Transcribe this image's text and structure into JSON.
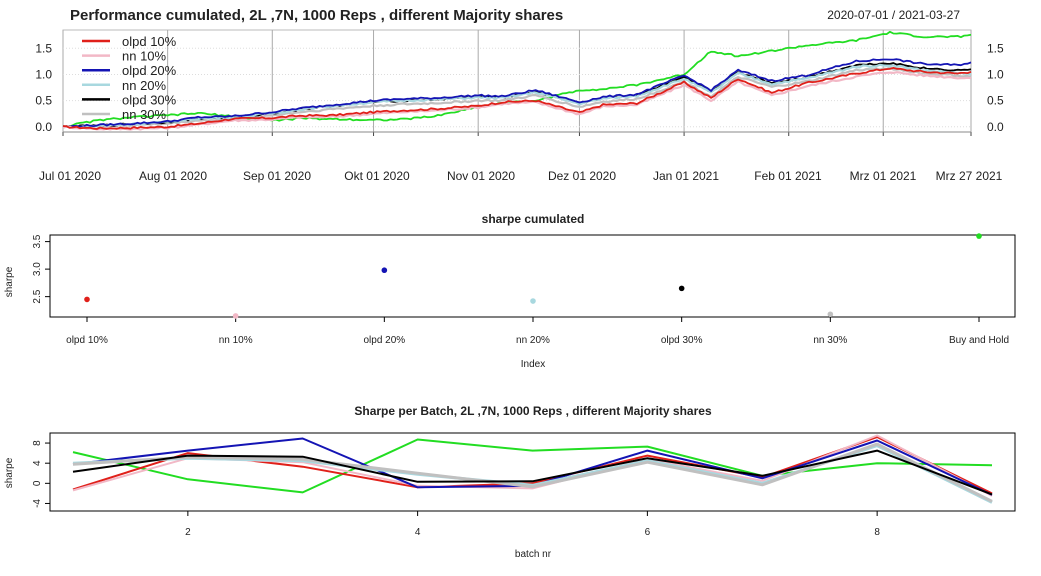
{
  "chart_data": [
    {
      "type": "line",
      "title": "Performance cumulated,  2L ,7N,  1000  Reps , different Majority shares",
      "subtitle": "2020-07-01 / 2021-03-27",
      "x_tick_labels": [
        "Jul 01 2020",
        "Aug 01 2020",
        "Sep 01 2020",
        "Okt 01 2020",
        "Nov 01 2020",
        "Dez 01 2020",
        "Jan 01 2021",
        "Feb 01 2021",
        "Mrz 01 2021",
        "Mrz 27 2021"
      ],
      "y_ticks": [
        "0.0",
        "0.5",
        "1.0",
        "1.5"
      ],
      "ylim": [
        -0.1,
        1.85
      ],
      "grid": true,
      "legend_position": "top-left",
      "x_days": [
        0,
        10,
        20,
        31,
        40,
        50,
        62,
        70,
        80,
        92,
        100,
        110,
        123,
        130,
        140,
        153,
        160,
        170,
        184,
        192,
        200,
        210,
        220,
        235,
        245,
        255,
        265,
        269
      ],
      "series": [
        {
          "name": "olpd 10%",
          "color": "#e0201a",
          "values": [
            0.0,
            -0.03,
            -0.02,
            0.0,
            0.06,
            0.15,
            0.17,
            0.21,
            0.22,
            0.28,
            0.31,
            0.34,
            0.4,
            0.47,
            0.5,
            0.27,
            0.42,
            0.45,
            0.85,
            0.55,
            0.92,
            0.65,
            0.83,
            1.02,
            1.12,
            1.05,
            1.02,
            1.05
          ]
        },
        {
          "name": "nn 10%",
          "color": "#f2b8c6",
          "values": [
            0.0,
            -0.04,
            -0.04,
            -0.02,
            0.04,
            0.12,
            0.14,
            0.18,
            0.19,
            0.25,
            0.28,
            0.31,
            0.37,
            0.44,
            0.47,
            0.24,
            0.39,
            0.42,
            0.8,
            0.5,
            0.86,
            0.6,
            0.77,
            0.96,
            1.05,
            0.98,
            0.94,
            0.93
          ]
        },
        {
          "name": "olpd 20%",
          "color": "#1414b4",
          "values": [
            0.0,
            0.03,
            0.06,
            0.1,
            0.18,
            0.2,
            0.28,
            0.35,
            0.42,
            0.5,
            0.53,
            0.55,
            0.6,
            0.58,
            0.7,
            0.47,
            0.57,
            0.62,
            0.98,
            0.7,
            1.08,
            0.88,
            0.98,
            1.25,
            1.3,
            1.2,
            1.18,
            1.23
          ]
        },
        {
          "name": "nn 20%",
          "color": "#a8d8df",
          "values": [
            0.0,
            0.02,
            0.05,
            0.09,
            0.16,
            0.18,
            0.26,
            0.33,
            0.4,
            0.47,
            0.5,
            0.52,
            0.56,
            0.55,
            0.66,
            0.44,
            0.54,
            0.59,
            0.92,
            0.65,
            1.02,
            0.82,
            0.92,
            1.15,
            1.18,
            1.08,
            1.03,
            1.0
          ]
        },
        {
          "name": "olpd 30%",
          "color": "#000000",
          "values": [
            0.0,
            0.02,
            0.05,
            0.09,
            0.16,
            0.18,
            0.26,
            0.33,
            0.4,
            0.47,
            0.5,
            0.52,
            0.58,
            0.56,
            0.67,
            0.45,
            0.55,
            0.6,
            0.94,
            0.67,
            1.04,
            0.84,
            0.94,
            1.18,
            1.22,
            1.12,
            1.08,
            1.1
          ]
        },
        {
          "name": "nn 30%",
          "color": "#c0c0c0",
          "values": [
            0.0,
            0.01,
            0.03,
            0.06,
            0.12,
            0.14,
            0.22,
            0.28,
            0.34,
            0.4,
            0.43,
            0.45,
            0.5,
            0.5,
            0.6,
            0.38,
            0.48,
            0.53,
            0.86,
            0.58,
            0.95,
            0.76,
            0.86,
            1.08,
            1.12,
            1.02,
            0.98,
            0.95
          ]
        },
        {
          "name": "",
          "color": "#22dd22",
          "values": [
            0.0,
            0.12,
            0.18,
            0.22,
            0.26,
            0.2,
            0.12,
            0.16,
            0.15,
            0.13,
            0.14,
            0.2,
            0.38,
            0.45,
            0.5,
            0.7,
            0.72,
            0.8,
            1.0,
            1.45,
            1.35,
            1.45,
            1.55,
            1.65,
            1.8,
            1.72,
            1.72,
            1.76
          ]
        }
      ],
      "legend": [
        {
          "name": "olpd 10%",
          "color": "#e0201a"
        },
        {
          "name": "nn 10%",
          "color": "#f2b8c6"
        },
        {
          "name": "olpd 20%",
          "color": "#1414b4"
        },
        {
          "name": "nn 20%",
          "color": "#a8d8df"
        },
        {
          "name": "olpd 30%",
          "color": "#000000"
        },
        {
          "name": "nn 30%",
          "color": "#c0c0c0"
        }
      ]
    },
    {
      "type": "scatter",
      "title": "sharpe cumulated",
      "xlabel": "Index",
      "ylabel": "sharpe",
      "categories": [
        "olpd 10%",
        "nn 10%",
        "olpd 20%",
        "nn 20%",
        "olpd 30%",
        "nn 30%",
        "Buy and Hold"
      ],
      "values": [
        2.45,
        2.15,
        2.98,
        2.42,
        2.65,
        2.18,
        3.6
      ],
      "colors": [
        "#e0201a",
        "#f2b8c6",
        "#1414b4",
        "#a8d8df",
        "#000000",
        "#c0c0c0",
        "#22dd22"
      ],
      "y_ticks": [
        2.5,
        3.0,
        3.5
      ],
      "ylim": [
        2.13,
        3.62
      ]
    },
    {
      "type": "line",
      "title": "Sharpe per Batch,  2L ,7N,  1000  Reps , different Majority shares",
      "xlabel": "batch nr",
      "ylabel": "sharpe",
      "x": [
        1,
        2,
        3,
        4,
        5,
        6,
        7,
        8,
        9
      ],
      "x_ticks": [
        2,
        4,
        6,
        8
      ],
      "y_ticks": [
        -4,
        0,
        4,
        8
      ],
      "xlim": [
        0.8,
        9.2
      ],
      "ylim": [
        -5.5,
        10.0
      ],
      "series": [
        {
          "color": "#22dd22",
          "values": [
            6.2,
            0.8,
            -1.8,
            8.7,
            6.5,
            7.3,
            1.5,
            4.0,
            3.6
          ]
        },
        {
          "color": "#e0201a",
          "values": [
            -1.2,
            6.0,
            3.3,
            -0.8,
            0.0,
            5.5,
            1.2,
            9.2,
            -2.0
          ]
        },
        {
          "color": "#f2b8c6",
          "values": [
            -1.4,
            5.0,
            4.2,
            -0.5,
            -1.0,
            4.8,
            0.5,
            9.5,
            -2.5
          ]
        },
        {
          "color": "#1414b4",
          "values": [
            3.8,
            6.5,
            8.9,
            -0.8,
            -0.5,
            6.5,
            1.0,
            8.5,
            -2.3
          ]
        },
        {
          "color": "#a8d8df",
          "values": [
            4.0,
            5.0,
            4.5,
            1.8,
            -0.4,
            4.5,
            0.0,
            7.5,
            -3.8
          ]
        },
        {
          "color": "#c0c0c0",
          "values": [
            3.8,
            5.2,
            4.8,
            2.0,
            -0.7,
            4.2,
            -0.3,
            7.8,
            -3.6
          ]
        },
        {
          "color": "#000000",
          "values": [
            2.3,
            5.5,
            5.3,
            0.3,
            0.4,
            5.0,
            1.5,
            6.5,
            -2.2
          ]
        }
      ]
    }
  ]
}
